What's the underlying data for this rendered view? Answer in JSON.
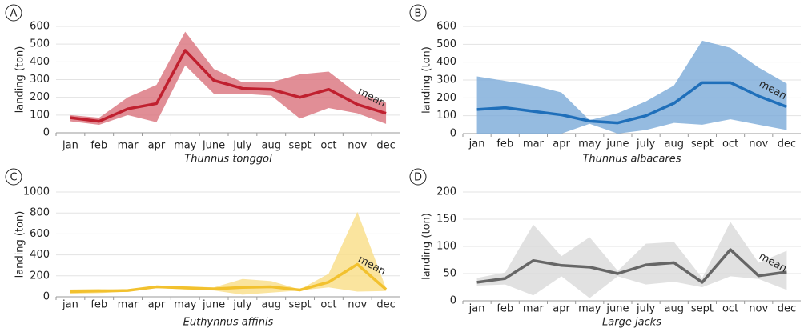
{
  "chart_data": [
    {
      "type": "line",
      "label": "A",
      "title": "Thunnus tonggol",
      "y_label": "landing (ton)",
      "categories": [
        "jan",
        "feb",
        "mar",
        "apr",
        "may",
        "june",
        "july",
        "aug",
        "sept",
        "oct",
        "nov",
        "dec"
      ],
      "series": [
        {
          "name": "mean",
          "color": "#c0202f",
          "values": [
            85,
            65,
            135,
            165,
            465,
            295,
            250,
            245,
            200,
            245,
            160,
            110
          ]
        }
      ],
      "band": {
        "color": "#d9727c",
        "upper": [
          100,
          85,
          200,
          270,
          570,
          360,
          285,
          285,
          330,
          345,
          220,
          170
        ],
        "lower": [
          65,
          45,
          100,
          60,
          380,
          220,
          220,
          210,
          80,
          140,
          110,
          50
        ]
      },
      "ylim": [
        0,
        600
      ],
      "yticks": [
        0,
        100,
        200,
        300,
        400,
        500,
        600
      ],
      "grid": true
    },
    {
      "type": "line",
      "label": "B",
      "title": "Thunnus albacares",
      "y_label": "landing (ton)",
      "categories": [
        "jan",
        "feb",
        "mar",
        "apr",
        "may",
        "june",
        "july",
        "aug",
        "sept",
        "oct",
        "nov",
        "dec"
      ],
      "series": [
        {
          "name": "mean",
          "color": "#1f6fba",
          "values": [
            135,
            145,
            125,
            105,
            70,
            60,
            100,
            170,
            285,
            285,
            210,
            150
          ]
        }
      ],
      "band": {
        "color": "#7aaad8",
        "upper": [
          320,
          295,
          270,
          230,
          75,
          115,
          180,
          270,
          520,
          480,
          370,
          280
        ],
        "lower": [
          0,
          0,
          0,
          0,
          55,
          0,
          20,
          60,
          50,
          80,
          50,
          20
        ]
      },
      "ylim": [
        0,
        600
      ],
      "yticks": [
        0,
        100,
        200,
        300,
        400,
        500,
        600
      ],
      "grid": true
    },
    {
      "type": "line",
      "label": "C",
      "title": "Euthynnus affinis",
      "y_label": "landing (ton)",
      "categories": [
        "jan",
        "feb",
        "mar",
        "apr",
        "may",
        "june",
        "july",
        "aug",
        "sept",
        "oct",
        "nov",
        "dec"
      ],
      "series": [
        {
          "name": "mean",
          "color": "#f2c12e",
          "values": [
            50,
            55,
            60,
            95,
            85,
            75,
            90,
            95,
            65,
            140,
            310,
            70
          ]
        }
      ],
      "band": {
        "color": "#f9dd86",
        "upper": [
          70,
          75,
          65,
          100,
          100,
          90,
          170,
          150,
          70,
          220,
          810,
          80
        ],
        "lower": [
          30,
          35,
          50,
          85,
          70,
          60,
          20,
          40,
          60,
          90,
          50,
          55
        ]
      },
      "ylim": [
        0,
        1000
      ],
      "yticks": [
        0,
        200,
        400,
        600,
        800,
        1000
      ],
      "grid": true
    },
    {
      "type": "line",
      "label": "D",
      "title": "Large jacks",
      "y_label": "landing (ton)",
      "categories": [
        "jan",
        "feb",
        "mar",
        "apr",
        "may",
        "june",
        "july",
        "aug",
        "sept",
        "oct",
        "nov",
        "dec"
      ],
      "series": [
        {
          "name": "mean",
          "color": "#666666",
          "values": [
            34,
            41,
            74,
            65,
            62,
            50,
            66,
            70,
            34,
            94,
            46,
            53
          ]
        }
      ],
      "band": {
        "color": "#d9d9d9",
        "upper": [
          42,
          52,
          140,
          82,
          117,
          55,
          105,
          108,
          42,
          145,
          70,
          92
        ],
        "lower": [
          28,
          30,
          10,
          45,
          5,
          45,
          30,
          35,
          25,
          45,
          40,
          20
        ]
      },
      "ylim": [
        0,
        200
      ],
      "yticks": [
        0,
        50,
        100,
        150,
        200
      ],
      "grid": true
    }
  ]
}
